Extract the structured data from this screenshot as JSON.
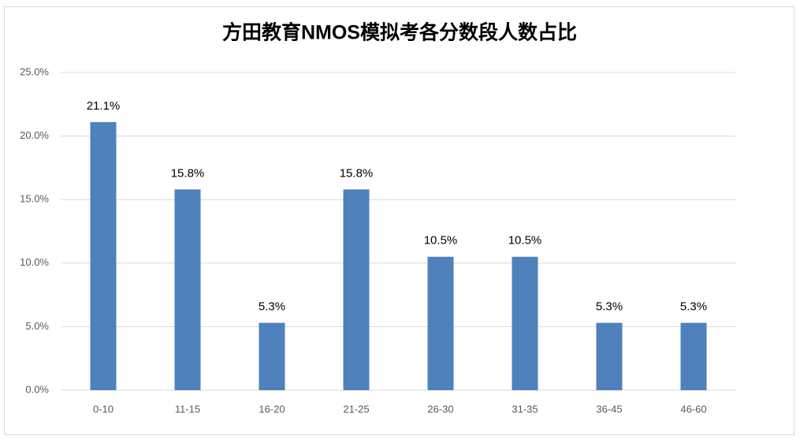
{
  "chart_data": {
    "type": "bar",
    "title": "方田教育NMOS模拟考各分数段人数占比",
    "categories": [
      "0-10",
      "11-15",
      "16-20",
      "21-25",
      "26-30",
      "31-35",
      "36-45",
      "46-60"
    ],
    "values": [
      21.1,
      15.8,
      5.3,
      15.8,
      10.5,
      10.5,
      5.3,
      5.3
    ],
    "value_labels": [
      "21.1%",
      "15.8%",
      "5.3%",
      "15.8%",
      "10.5%",
      "10.5%",
      "5.3%",
      "5.3%"
    ],
    "color": "#4f81bd",
    "ylim": [
      0,
      25
    ],
    "yticks": [
      {
        "value": 0,
        "label": "0.0%"
      },
      {
        "value": 5,
        "label": "5.0%"
      },
      {
        "value": 10,
        "label": "10.0%"
      },
      {
        "value": 15,
        "label": "15.0%"
      },
      {
        "value": 20,
        "label": "20.0%"
      },
      {
        "value": 25,
        "label": "25.0%"
      }
    ],
    "grid": true
  }
}
